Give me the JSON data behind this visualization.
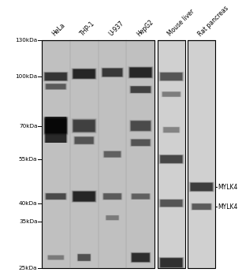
{
  "lane_labels": [
    "HeLa",
    "THP-1",
    "U-937",
    "HepG2",
    "Mouse liver",
    "Rat pancreas"
  ],
  "mw_vals": [
    130,
    100,
    70,
    55,
    40,
    35,
    25
  ],
  "right_labels": [
    "MYLK4",
    "MYLK4"
  ],
  "panel1_color": "#c0c0c0",
  "panel2_color": "#d0d0d0",
  "panel3_color": "#d0d0d0",
  "bg_color": "#ffffff"
}
